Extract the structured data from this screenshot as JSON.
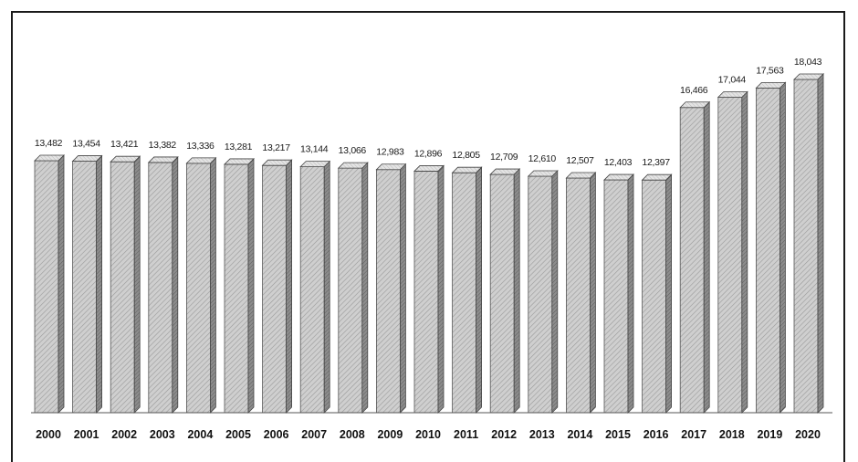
{
  "chart_data": {
    "type": "bar",
    "title": "",
    "xlabel": "",
    "ylabel": "",
    "categories": [
      "2000",
      "2001",
      "2002",
      "2003",
      "2004",
      "2005",
      "2006",
      "2007",
      "2008",
      "2009",
      "2010",
      "2011",
      "2012",
      "2013",
      "2014",
      "2015",
      "2016",
      "2017",
      "2018",
      "2019",
      "2020"
    ],
    "values": [
      13482,
      13454,
      13421,
      13382,
      13336,
      13281,
      13217,
      13144,
      13066,
      12983,
      12896,
      12805,
      12709,
      12610,
      12507,
      12403,
      12397,
      16466,
      17044,
      17563,
      18043
    ],
    "value_labels": [
      "13,482",
      "13,454",
      "13,421",
      "13,382",
      "13,336",
      "13,281",
      "13,217",
      "13,144",
      "13,066",
      "12,983",
      "12,896",
      "12,805",
      "12,709",
      "12,610",
      "12,507",
      "12,403",
      "12,397",
      "16,466",
      "17,044",
      "17,563",
      "18,043"
    ],
    "ylim": [
      0,
      20000
    ],
    "grid": false,
    "legend": "none",
    "style": "3d-hatched",
    "colors": {
      "bar_front": "#c9c9c9",
      "bar_side": "#7d7d7d",
      "bar_top": "#e2e2e2",
      "hatch": "#8a8a8a",
      "baseline": "#555555"
    }
  }
}
